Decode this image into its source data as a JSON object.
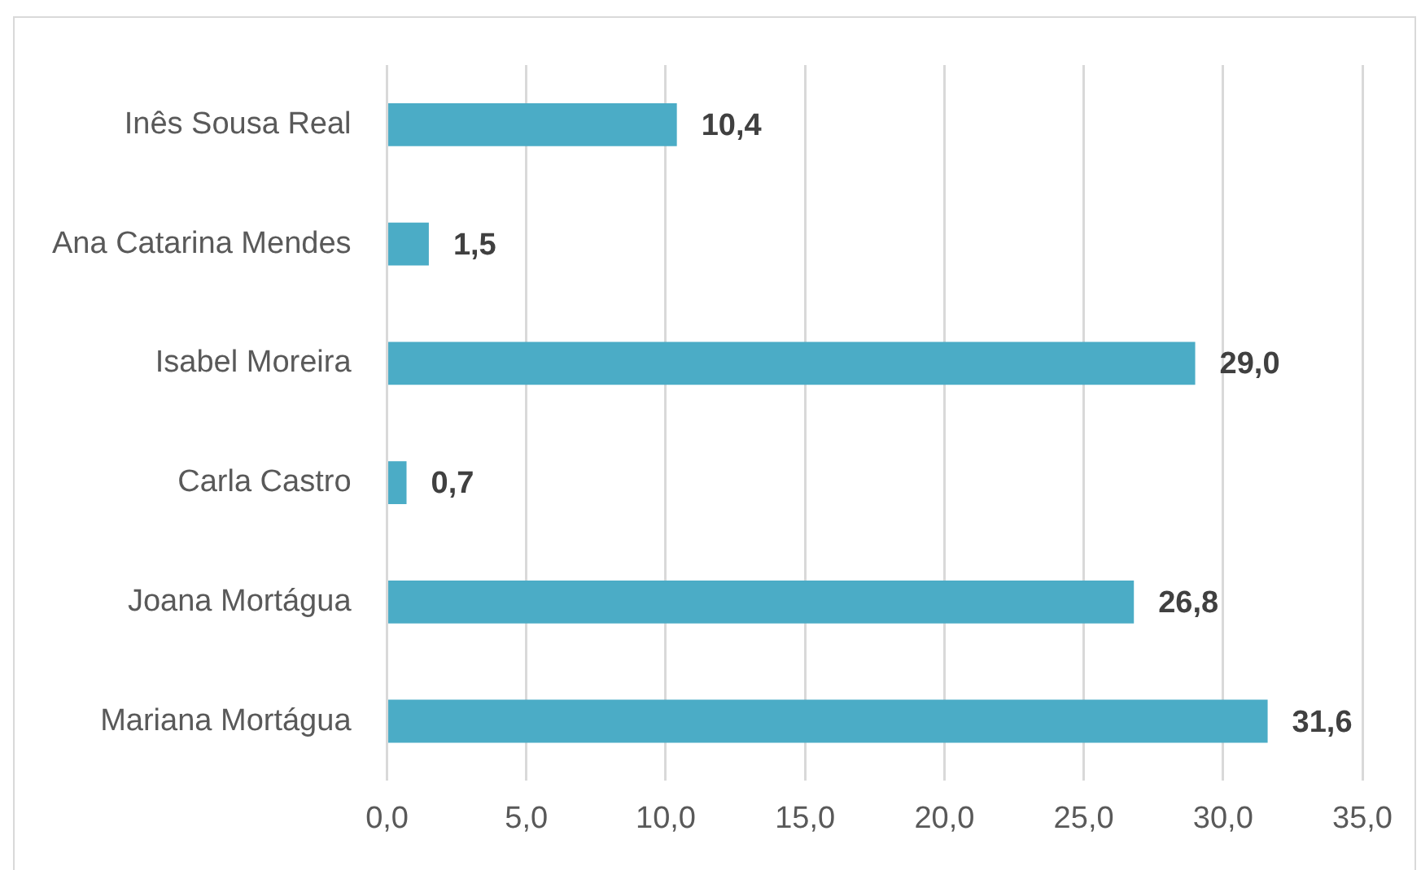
{
  "chart_data": {
    "type": "bar",
    "orientation": "horizontal",
    "categories": [
      "Inês Sousa Real",
      "Ana Catarina Mendes",
      "Isabel Moreira",
      "Carla Castro",
      "Joana Mortágua",
      "Mariana Mortágua"
    ],
    "values": [
      10.4,
      1.5,
      29.0,
      0.7,
      26.8,
      31.6
    ],
    "value_labels": [
      "10,4",
      "1,5",
      "29,0",
      "0,7",
      "26,8",
      "31,6"
    ],
    "color": "#4bacc6",
    "xlim": [
      0,
      35
    ],
    "xticks": [
      {
        "value": 0,
        "label": "0,0"
      },
      {
        "value": 5,
        "label": "5,0"
      },
      {
        "value": 10,
        "label": "10,0"
      },
      {
        "value": 15,
        "label": "15,0"
      },
      {
        "value": 20,
        "label": "20,0"
      },
      {
        "value": 25,
        "label": "25,0"
      },
      {
        "value": 30,
        "label": "30,0"
      },
      {
        "value": 35,
        "label": "35,0"
      }
    ],
    "grid": "x"
  }
}
